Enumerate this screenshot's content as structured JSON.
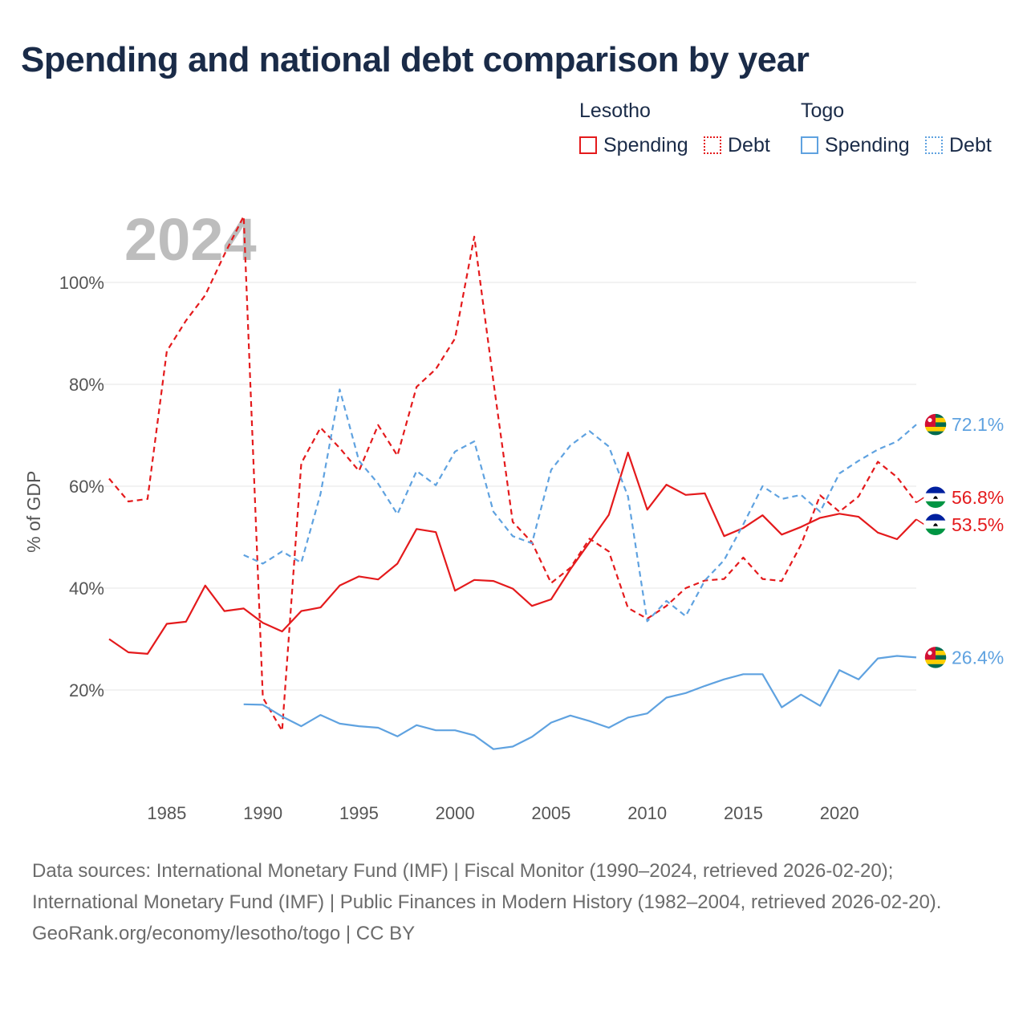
{
  "title": "Spending and national debt comparison by year",
  "legend": {
    "groups": [
      {
        "name": "Lesotho",
        "items": [
          {
            "label": "Spending",
            "style": "solid",
            "color": "#e41a1c"
          },
          {
            "label": "Debt",
            "style": "dotted",
            "color": "#e41a1c"
          }
        ]
      },
      {
        "name": "Togo",
        "items": [
          {
            "label": "Spending",
            "style": "solid",
            "color": "#5fa2e0"
          },
          {
            "label": "Debt",
            "style": "dotted",
            "color": "#5fa2e0"
          }
        ]
      }
    ]
  },
  "colors": {
    "lesotho": "#e41a1c",
    "togo": "#5fa2e0"
  },
  "chart_data": {
    "type": "line",
    "year_label": "2024",
    "ylabel": "% of GDP",
    "xlim": [
      1982,
      2024
    ],
    "ylim": [
      0,
      110
    ],
    "x_ticks": [
      1985,
      1990,
      1995,
      2000,
      2005,
      2010,
      2015,
      2020
    ],
    "y_ticks": [
      {
        "value": 20,
        "label": "20%"
      },
      {
        "value": 40,
        "label": "40%"
      },
      {
        "value": 60,
        "label": "60%"
      },
      {
        "value": 80,
        "label": "80%"
      },
      {
        "value": 100,
        "label": "100%"
      }
    ],
    "series": [
      {
        "name": "Lesotho Spending",
        "country": "Lesotho",
        "metric": "Spending",
        "color": "#e41a1c",
        "dash": false,
        "x_start": 1982,
        "values": [
          30.0,
          27.4,
          27.1,
          33.0,
          33.4,
          40.5,
          35.5,
          36.0,
          33.2,
          31.5,
          35.5,
          36.2,
          40.5,
          42.3,
          41.7,
          44.8,
          51.6,
          51.0,
          39.5,
          41.6,
          41.4,
          39.9,
          36.5,
          37.8,
          43.7,
          49.0,
          54.4,
          66.6,
          55.4,
          60.3,
          58.3,
          58.6,
          50.2,
          51.8,
          54.3,
          50.5,
          52.0,
          53.8,
          54.6,
          54.0,
          50.9,
          49.6,
          53.5
        ],
        "end_label": "53.5%",
        "flag": "lesotho"
      },
      {
        "name": "Lesotho Debt",
        "country": "Lesotho",
        "metric": "Debt",
        "color": "#e41a1c",
        "dash": true,
        "x_start": 1982,
        "values": [
          61.5,
          57.0,
          57.5,
          86.5,
          92.5,
          97.5,
          105.5,
          113.0,
          18.5,
          12.0,
          64.5,
          71.5,
          67.5,
          63.0,
          72.0,
          66.0,
          79.5,
          83.0,
          89.0,
          109.0,
          80.5,
          53.0,
          49.0,
          41.0,
          44.0,
          49.7,
          47.2,
          36.1,
          34.0,
          36.5,
          40.0,
          41.5,
          41.8,
          46.0,
          41.8,
          41.4,
          48.5,
          58.2,
          55.0,
          58.0,
          64.8,
          61.8,
          56.8
        ],
        "end_label": "56.8%",
        "flag": "lesotho"
      },
      {
        "name": "Togo Spending",
        "country": "Togo",
        "metric": "Spending",
        "color": "#5fa2e0",
        "dash": false,
        "x_start": 1989,
        "values": [
          17.2,
          17.1,
          14.8,
          12.9,
          15.1,
          13.4,
          12.9,
          12.6,
          10.9,
          13.1,
          12.1,
          12.1,
          11.1,
          8.4,
          8.9,
          10.8,
          13.6,
          15.0,
          13.9,
          12.6,
          14.6,
          15.4,
          18.5,
          19.4,
          20.8,
          22.1,
          23.1,
          23.1,
          16.6,
          19.1,
          16.9,
          23.9,
          22.1,
          26.2,
          26.7,
          26.4
        ],
        "end_label": "26.4%",
        "flag": "togo"
      },
      {
        "name": "Togo Debt",
        "country": "Togo",
        "metric": "Debt",
        "color": "#5fa2e0",
        "dash": true,
        "x_start": 1989,
        "values": [
          46.5,
          44.8,
          47.2,
          45.0,
          58.5,
          79.0,
          65.0,
          60.5,
          54.5,
          63.0,
          60.2,
          66.8,
          68.8,
          55.0,
          50.2,
          48.8,
          63.2,
          68.0,
          70.8,
          67.8,
          58.0,
          33.5,
          37.5,
          34.5,
          41.5,
          45.5,
          52.5,
          60.0,
          57.5,
          58.3,
          55.0,
          62.5,
          65.0,
          67.2,
          68.8,
          72.1
        ],
        "end_label": "72.1%",
        "flag": "togo"
      }
    ]
  },
  "footer": {
    "sources": "Data sources: International Monetary Fund (IMF) | Fiscal Monitor (1990–2024, retrieved 2026-02-20); International Monetary Fund (IMF) | Public Finances in Modern History (1982–2004, retrieved 2026-02-20).",
    "credit": "GeoRank.org/economy/lesotho/togo | CC BY"
  }
}
